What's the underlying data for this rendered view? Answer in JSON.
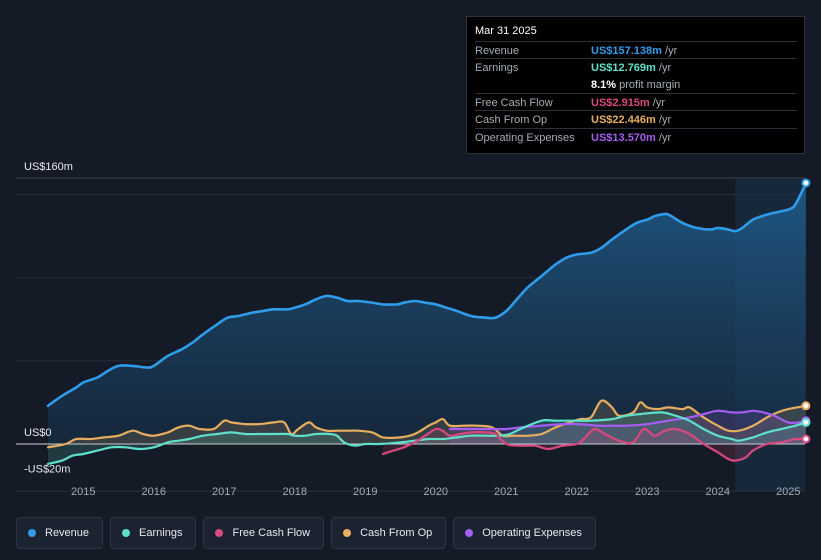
{
  "colors": {
    "revenue": "#2f9cea",
    "earnings": "#5fe0cb",
    "free_cash_flow": "#d9487f",
    "cash_from_op": "#e8ae60",
    "operating_expenses": "#a55df2"
  },
  "tooltip": {
    "date": "Mar 31 2025",
    "rows": [
      {
        "label": "Revenue",
        "value": "US$157.138m",
        "unit": "/yr",
        "color": "#2f9cea"
      },
      {
        "label": "Earnings",
        "value": "US$12.769m",
        "unit": "/yr",
        "color": "#5fe0cb"
      },
      {
        "label": "",
        "value": "8.1%",
        "unit": "profit margin",
        "color": "#ffffff"
      },
      {
        "label": "Free Cash Flow",
        "value": "US$2.915m",
        "unit": "/yr",
        "color": "#d9487f"
      },
      {
        "label": "Cash From Op",
        "value": "US$22.446m",
        "unit": "/yr",
        "color": "#e8ae60"
      },
      {
        "label": "Operating Expenses",
        "value": "US$13.570m",
        "unit": "/yr",
        "color": "#a55df2"
      }
    ]
  },
  "legend": [
    {
      "label": "Revenue",
      "color": "#2f9cea"
    },
    {
      "label": "Earnings",
      "color": "#5fe0cb"
    },
    {
      "label": "Free Cash Flow",
      "color": "#d9487f"
    },
    {
      "label": "Cash From Op",
      "color": "#e8ae60"
    },
    {
      "label": "Operating Expenses",
      "color": "#a55df2"
    }
  ],
  "chart_data": {
    "type": "area",
    "title": "",
    "xlabel": "",
    "ylabel": "",
    "xlim": [
      2014.45,
      2025.3
    ],
    "ylim": [
      -20,
      160
    ],
    "ytick_labels": [
      {
        "value": 160,
        "label": "US$160m"
      },
      {
        "value": 0,
        "label": "US$0"
      },
      {
        "value": -20,
        "label": "-US$20m"
      }
    ],
    "xtick_labels": [
      {
        "value": 2015,
        "label": "2015"
      },
      {
        "value": 2016,
        "label": "2016"
      },
      {
        "value": 2017,
        "label": "2017"
      },
      {
        "value": 2018,
        "label": "2018"
      },
      {
        "value": 2019,
        "label": "2019"
      },
      {
        "value": 2020,
        "label": "2020"
      },
      {
        "value": 2021,
        "label": "2021"
      },
      {
        "value": 2022,
        "label": "2022"
      },
      {
        "value": 2023,
        "label": "2023"
      },
      {
        "value": 2024,
        "label": "2024"
      },
      {
        "value": 2025,
        "label": "2025"
      }
    ],
    "gridlines": [
      150,
      100,
      50
    ],
    "highlight_start": 2024.25,
    "series": [
      {
        "name": "Revenue",
        "key": "revenue",
        "x": [
          2014.5,
          2014.7,
          2014.9,
          2015.0,
          2015.2,
          2015.35,
          2015.5,
          2015.7,
          2015.9,
          2016.0,
          2016.2,
          2016.4,
          2016.55,
          2016.7,
          2016.9,
          2017.05,
          2017.2,
          2017.4,
          2017.55,
          2017.7,
          2017.9,
          2018.0,
          2018.15,
          2018.3,
          2018.45,
          2018.6,
          2018.75,
          2018.9,
          2019.1,
          2019.25,
          2019.45,
          2019.55,
          2019.7,
          2019.85,
          2020.0,
          2020.15,
          2020.3,
          2020.5,
          2020.7,
          2020.85,
          2021.0,
          2021.15,
          2021.3,
          2021.5,
          2021.7,
          2021.85,
          2022.0,
          2022.2,
          2022.35,
          2022.5,
          2022.7,
          2022.85,
          2023.0,
          2023.1,
          2023.2,
          2023.3,
          2023.5,
          2023.7,
          2023.9,
          2024.0,
          2024.15,
          2024.25,
          2024.35,
          2024.5,
          2024.7,
          2024.9,
          2025.0,
          2025.1,
          2025.25
        ],
        "values": [
          23,
          29,
          34,
          37,
          40,
          44,
          47,
          47,
          46,
          47,
          53,
          57,
          61,
          66,
          72,
          76,
          77,
          79,
          80,
          81,
          81,
          82,
          84,
          87,
          89,
          88,
          86,
          86,
          85,
          84,
          84,
          85,
          86,
          85,
          84,
          82,
          80,
          77,
          76,
          76,
          80,
          87,
          94,
          101,
          108,
          112,
          114,
          115,
          118,
          123,
          129,
          133,
          135,
          137,
          138,
          138,
          133,
          130,
          129,
          130,
          129,
          128,
          130,
          135,
          138,
          140,
          141,
          144,
          157
        ]
      },
      {
        "name": "Earnings",
        "key": "earnings",
        "x": [
          2014.5,
          2014.7,
          2014.85,
          2015.0,
          2015.2,
          2015.4,
          2015.6,
          2015.8,
          2016.0,
          2016.2,
          2016.35,
          2016.5,
          2016.7,
          2016.9,
          2017.1,
          2017.3,
          2017.5,
          2017.7,
          2017.9,
          2018.0,
          2018.15,
          2018.3,
          2018.5,
          2018.6,
          2018.7,
          2018.85,
          2019.0,
          2019.2,
          2019.5,
          2019.7,
          2019.9,
          2020.1,
          2020.3,
          2020.5,
          2020.7,
          2020.9,
          2021.05,
          2021.2,
          2021.5,
          2021.7,
          2022.0,
          2022.2,
          2022.5,
          2022.7,
          2022.9,
          2023.2,
          2023.4,
          2023.6,
          2023.8,
          2024.0,
          2024.2,
          2024.3,
          2024.5,
          2024.7,
          2024.9,
          2025.0,
          2025.1,
          2025.25
        ],
        "values": [
          -12,
          -10,
          -7,
          -6,
          -4,
          -2,
          -2,
          -3,
          -2,
          1,
          2,
          3,
          5,
          6,
          7,
          6,
          6,
          6,
          6,
          5,
          5,
          6,
          6,
          5,
          1,
          -1,
          0,
          0,
          1,
          2,
          3,
          3,
          4,
          5,
          5,
          5,
          6,
          9,
          14,
          14,
          14,
          14,
          15,
          17,
          18,
          19,
          17,
          14,
          9,
          5,
          3,
          2,
          4,
          7,
          9,
          10,
          11,
          13
        ]
      },
      {
        "name": "Free Cash Flow",
        "key": "free_cash_flow",
        "x": [
          2019.25,
          2019.4,
          2019.55,
          2019.7,
          2019.85,
          2020.0,
          2020.1,
          2020.2,
          2020.35,
          2020.5,
          2020.7,
          2020.85,
          2021.0,
          2021.2,
          2021.4,
          2021.6,
          2021.8,
          2022.0,
          2022.1,
          2022.25,
          2022.4,
          2022.6,
          2022.8,
          2022.95,
          2023.1,
          2023.25,
          2023.4,
          2023.6,
          2023.8,
          2024.0,
          2024.15,
          2024.25,
          2024.4,
          2024.5,
          2024.7,
          2024.9,
          2025.0,
          2025.1,
          2025.25
        ],
        "values": [
          -6,
          -4,
          -2,
          1,
          5,
          9,
          8,
          5,
          6,
          7,
          7,
          6,
          0,
          -1,
          -1,
          -3,
          -1,
          0,
          3,
          9,
          6,
          2,
          1,
          9,
          5,
          8,
          9,
          6,
          0,
          -5,
          -9,
          -10,
          -8,
          -4,
          0,
          1,
          2,
          3,
          3
        ]
      },
      {
        "name": "Cash From Op",
        "key": "cash_from_op",
        "x": [
          2014.5,
          2014.75,
          2014.9,
          2015.1,
          2015.3,
          2015.5,
          2015.7,
          2015.85,
          2016.0,
          2016.2,
          2016.35,
          2016.5,
          2016.65,
          2016.85,
          2017.0,
          2017.1,
          2017.3,
          2017.5,
          2017.7,
          2017.85,
          2017.95,
          2018.05,
          2018.2,
          2018.3,
          2018.45,
          2018.6,
          2018.75,
          2018.9,
          2019.1,
          2019.25,
          2019.5,
          2019.7,
          2019.9,
          2020.0,
          2020.1,
          2020.2,
          2020.4,
          2020.6,
          2020.8,
          2020.95,
          2021.1,
          2021.3,
          2021.5,
          2021.7,
          2021.9,
          2022.05,
          2022.2,
          2022.35,
          2022.5,
          2022.6,
          2022.8,
          2022.9,
          2023.0,
          2023.15,
          2023.3,
          2023.5,
          2023.6,
          2023.8,
          2024.0,
          2024.15,
          2024.3,
          2024.5,
          2024.7,
          2024.85,
          2025.0,
          2025.25
        ],
        "values": [
          -2,
          0,
          3,
          3,
          4,
          5,
          8,
          6,
          5,
          7,
          10,
          11,
          9,
          9,
          14,
          13,
          12,
          12,
          13,
          13,
          6,
          9,
          13,
          10,
          8,
          8,
          8,
          8,
          7,
          4,
          4,
          6,
          11,
          13,
          15,
          11,
          11,
          11,
          10,
          5,
          5,
          5,
          6,
          10,
          13,
          15,
          16,
          26,
          22,
          17,
          19,
          25,
          22,
          21,
          22,
          21,
          22,
          16,
          11,
          8,
          8,
          11,
          16,
          19,
          21,
          23
        ]
      },
      {
        "name": "Operating Expenses",
        "key": "operating_expenses",
        "x": [
          2020.2,
          2020.5,
          2020.8,
          2021.0,
          2021.2,
          2021.5,
          2021.8,
          2022.0,
          2022.3,
          2022.5,
          2022.7,
          2023.0,
          2023.3,
          2023.6,
          2023.8,
          2024.0,
          2024.2,
          2024.35,
          2024.5,
          2024.65,
          2024.8,
          2025.0,
          2025.15,
          2025.25
        ],
        "values": [
          9,
          9,
          9,
          9,
          10,
          11,
          12,
          12,
          11,
          11,
          11,
          12,
          14,
          16,
          18,
          20,
          19,
          19,
          20,
          19,
          17,
          13,
          13,
          14
        ]
      }
    ]
  }
}
